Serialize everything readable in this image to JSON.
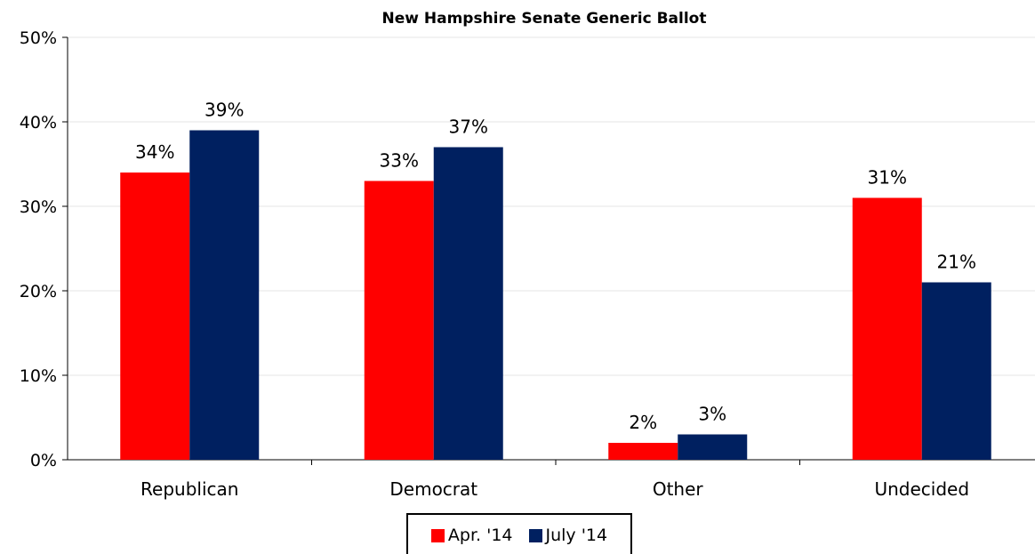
{
  "chart_data": {
    "type": "bar",
    "title": "New Hampshire Senate Generic Ballot",
    "xlabel": "",
    "ylabel": "",
    "categories": [
      "Republican",
      "Democrat",
      "Other",
      "Undecided"
    ],
    "series": [
      {
        "name": "Apr. '14",
        "values": [
          34,
          33,
          2,
          31
        ],
        "labels": [
          "34%",
          "33%",
          "2%",
          "31%"
        ],
        "color": "#ff0000"
      },
      {
        "name": "July '14",
        "values": [
          39,
          37,
          3,
          21
        ],
        "labels": [
          "39%",
          "37%",
          "3%",
          "21%"
        ],
        "color": "#002060"
      }
    ],
    "ylim": [
      0,
      50
    ],
    "yticks": [
      0,
      10,
      20,
      30,
      40,
      50
    ],
    "ytick_labels": [
      "0%",
      "10%",
      "20%",
      "30%",
      "40%",
      "50%"
    ],
    "grid": true,
    "legend_position": "bottom-center"
  }
}
